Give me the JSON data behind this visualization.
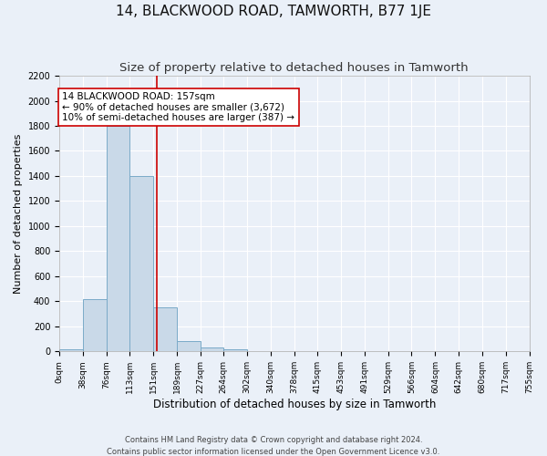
{
  "title": "14, BLACKWOOD ROAD, TAMWORTH, B77 1JE",
  "subtitle": "Size of property relative to detached houses in Tamworth",
  "xlabel": "Distribution of detached houses by size in Tamworth",
  "ylabel": "Number of detached properties",
  "footer1": "Contains HM Land Registry data © Crown copyright and database right 2024.",
  "footer2": "Contains public sector information licensed under the Open Government Licence v3.0.",
  "bar_edges": [
    0,
    38,
    76,
    113,
    151,
    189,
    227,
    264,
    302,
    340,
    378,
    415,
    453,
    491,
    529,
    566,
    604,
    642,
    680,
    717,
    755
  ],
  "bar_heights": [
    15,
    415,
    1800,
    1400,
    350,
    80,
    32,
    18,
    0,
    0,
    0,
    0,
    0,
    0,
    0,
    0,
    0,
    0,
    0,
    0
  ],
  "bar_color": "#c9d9e8",
  "bar_edge_color": "#7aaac8",
  "vline_x": 157,
  "vline_color": "#cc0000",
  "annotation_text": "14 BLACKWOOD ROAD: 157sqm\n← 90% of detached houses are smaller (3,672)\n10% of semi-detached houses are larger (387) →",
  "annotation_box_color": "#cc0000",
  "annotation_text_color": "#000000",
  "ylim": [
    0,
    2200
  ],
  "yticks": [
    0,
    200,
    400,
    600,
    800,
    1000,
    1200,
    1400,
    1600,
    1800,
    2000,
    2200
  ],
  "bg_color": "#eaf0f8",
  "plot_bg_color": "#eaf0f8",
  "grid_color": "#ffffff",
  "title_fontsize": 11,
  "subtitle_fontsize": 9.5,
  "ylabel_fontsize": 8,
  "xlabel_fontsize": 8.5,
  "tick_fontsize": 6.5,
  "footer_fontsize": 6,
  "annotation_fontsize": 7.5
}
